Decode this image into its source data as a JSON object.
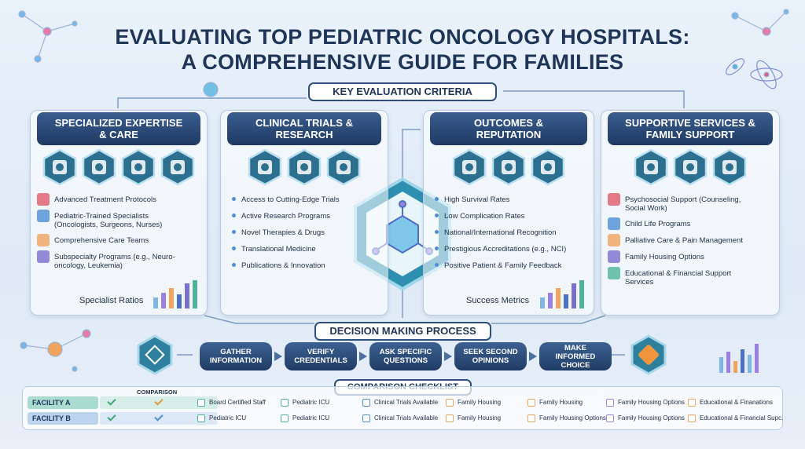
{
  "header": {
    "title_line1": "EVALUATING TOP PEDIATRIC ONCOLOGY HOSPITALS:",
    "title_line2": "A COMPREHENSIVE GUIDE FOR FAMILIES"
  },
  "criteria": {
    "title": "KEY EVALUATION CRITERIA",
    "panels": [
      {
        "title": "SPECIALIZED EXPERTISE & CARE",
        "items": [
          "Advanced Treatment Protocols",
          "Pediatric-Trained Specialists (Oncologists, Surgeons, Nurses)",
          "Comprehensive Care Teams",
          "Subspecialty Programs (e.g., Neuro-oncology, Leukemia)"
        ],
        "footer": "Specialist Ratios"
      },
      {
        "title": "CLINICAL TRIALS & RESEARCH",
        "items": [
          "Access to Cutting-Edge Trials",
          "Active Research Programs",
          "Novel Therapies & Drugs",
          "Translational Medicine",
          "Publications & Innovation"
        ]
      },
      {
        "title": "OUTCOMES & REPUTATION",
        "items": [
          "High Survival Rates",
          "Low Complication Rates",
          "National/International Recognition",
          "Prestigious Accreditations (e.g., NCI)",
          "Positive Patient & Family Feedback"
        ],
        "footer": "Success Metrics"
      },
      {
        "title": "SUPPORTIVE SERVICES & FAMILY SUPPORT",
        "items": [
          "Psychosocial Support (Counseling, Social Work)",
          "Child Life Programs",
          "Palliative Care & Pain Management",
          "Family Housing Options",
          "Educational & Financial Support Services"
        ]
      }
    ]
  },
  "process": {
    "title": "DECISION MAKING PROCESS",
    "steps": [
      "GATHER INFORMATION",
      "VERIFY CREDENTIALS",
      "ASK SPECIFIC QUESTIONS",
      "SEEK SECOND OPINIONS",
      "MAKE INFORMED CHOICE"
    ]
  },
  "checklist": {
    "title": "COMPARISON CHECKLIST",
    "column_header": "COMPARISON",
    "rows": [
      {
        "facility": "FACILITY A",
        "items": [
          "Board Certified Staff",
          "Pediatric ICU",
          "Clinical Trials Available",
          "Family Housing",
          "Family Housing",
          "Family Housing Options",
          "Educational & Finanations"
        ]
      },
      {
        "facility": "FACILITY B",
        "items": [
          "Pediatric ICU",
          "Pediatric ICU",
          "Clinical Trials Available",
          "Family Housing",
          "Family Housing Options",
          "Family Housing Options",
          "Educational & Financial Supc."
        ]
      }
    ]
  }
}
